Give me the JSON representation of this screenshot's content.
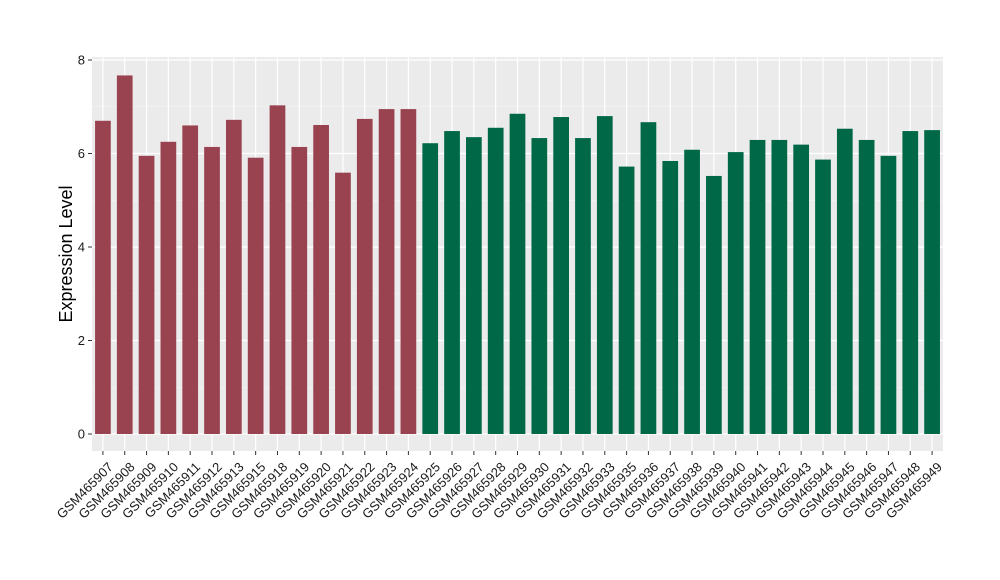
{
  "chart_data": {
    "type": "bar",
    "title": "",
    "xlabel": "",
    "ylabel": "Expression Level",
    "ylim": [
      0,
      8.1
    ],
    "yticks": [
      0,
      2,
      4,
      6,
      8
    ],
    "grid": true,
    "legend": "none",
    "categories": [
      "GSM465907",
      "GSM465908",
      "GSM465909",
      "GSM465910",
      "GSM465911",
      "GSM465912",
      "GSM465913",
      "GSM465915",
      "GSM465918",
      "GSM465919",
      "GSM465920",
      "GSM465921",
      "GSM465922",
      "GSM465923",
      "GSM465924",
      "GSM465925",
      "GSM465926",
      "GSM465927",
      "GSM465928",
      "GSM465929",
      "GSM465930",
      "GSM465931",
      "GSM465932",
      "GSM465933",
      "GSM465935",
      "GSM465936",
      "GSM465937",
      "GSM465938",
      "GSM465939",
      "GSM465940",
      "GSM465941",
      "GSM465942",
      "GSM465943",
      "GSM465944",
      "GSM465945",
      "GSM465946",
      "GSM465947",
      "GSM465948",
      "GSM465949"
    ],
    "values": [
      6.7,
      7.67,
      5.95,
      6.25,
      6.6,
      6.14,
      6.72,
      5.91,
      7.03,
      6.14,
      6.61,
      5.59,
      6.74,
      6.95,
      6.95,
      6.22,
      6.48,
      6.35,
      6.55,
      6.85,
      6.33,
      6.78,
      6.33,
      6.8,
      5.72,
      6.67,
      5.84,
      6.08,
      5.52,
      6.03,
      6.29,
      6.29,
      6.19,
      5.87,
      6.53,
      6.29,
      5.95,
      6.48,
      6.5
    ],
    "group_colors": [
      "#9a4350",
      "#9a4350",
      "#9a4350",
      "#9a4350",
      "#9a4350",
      "#9a4350",
      "#9a4350",
      "#9a4350",
      "#9a4350",
      "#9a4350",
      "#9a4350",
      "#9a4350",
      "#9a4350",
      "#9a4350",
      "#9a4350",
      "#006847",
      "#006847",
      "#006847",
      "#006847",
      "#006847",
      "#006847",
      "#006847",
      "#006847",
      "#006847",
      "#006847",
      "#006847",
      "#006847",
      "#006847",
      "#006847",
      "#006847",
      "#006847",
      "#006847",
      "#006847",
      "#006847",
      "#006847",
      "#006847",
      "#006847",
      "#006847",
      "#006847"
    ],
    "panel_background": "#ebebeb"
  }
}
